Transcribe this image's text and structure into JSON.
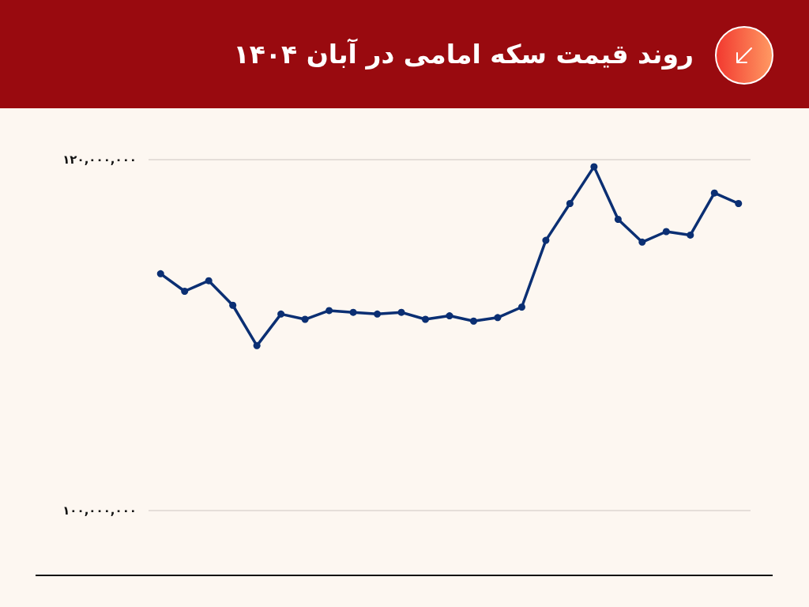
{
  "chart_data": {
    "type": "line",
    "title": "روند قیمت سکه امامی در آبان ۱۴۰۴",
    "categories": [
      null,
      null,
      null,
      null,
      null,
      null,
      null,
      null,
      null,
      null,
      null,
      null,
      null,
      null,
      null,
      null,
      null,
      null,
      null,
      null,
      null,
      null,
      null,
      null,
      null
    ],
    "values": [
      113500000,
      112500000,
      113100000,
      111700000,
      109400000,
      111200000,
      110900000,
      111400000,
      111300000,
      111200000,
      111300000,
      110900000,
      111100000,
      110800000,
      111000000,
      111600000,
      115400000,
      117500000,
      119600000,
      116600000,
      115300000,
      115900000,
      115700000,
      118100000,
      117500000
    ],
    "color": "#0b2f73",
    "ylim": [
      100000000,
      120000000
    ],
    "yticks": [
      {
        "value": 100000000,
        "label": "۱۰۰,۰۰۰,۰۰۰"
      },
      {
        "value": 120000000,
        "label": "۱۲۰,۰۰۰,۰۰۰"
      }
    ],
    "grid": "y",
    "marker": "circle",
    "line_style": "solid",
    "tick_labels": "y"
  }
}
